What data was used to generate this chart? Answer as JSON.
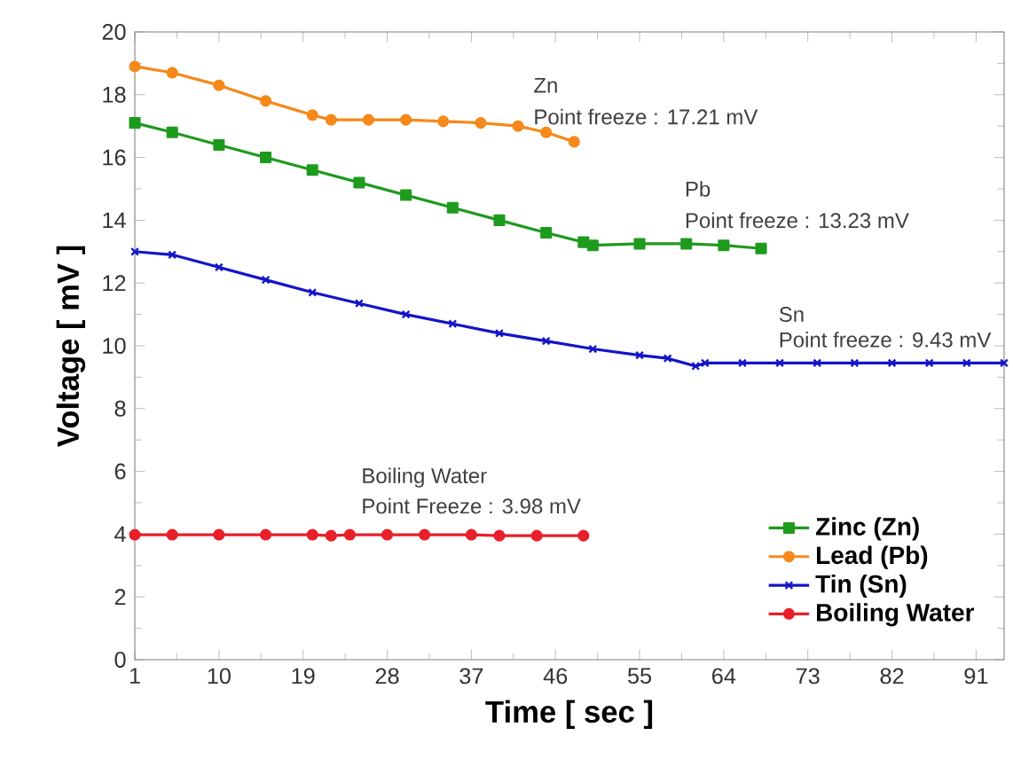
{
  "chart_data": {
    "type": "line",
    "xlabel": "Time [ sec ]",
    "ylabel": "Voltage [ mV ]",
    "xlim": [
      1,
      94
    ],
    "xticks": [
      1,
      10,
      19,
      28,
      37,
      46,
      55,
      64,
      73,
      82,
      91
    ],
    "ylim": [
      0,
      20
    ],
    "yticks": [
      0,
      2,
      4,
      6,
      8,
      10,
      12,
      14,
      16,
      18,
      20
    ],
    "grid": false,
    "legend": "bottom right",
    "series": [
      {
        "name": "Zinc (Zn)",
        "color": "#1e9a1e",
        "marker": "square",
        "x": [
          1,
          5,
          10,
          15,
          20,
          25,
          30,
          35,
          40,
          45,
          49,
          50,
          55,
          60,
          64,
          68
        ],
        "values": [
          17.1,
          16.8,
          16.4,
          16.0,
          15.6,
          15.2,
          14.8,
          14.4,
          14.0,
          13.6,
          13.3,
          13.2,
          13.25,
          13.25,
          13.2,
          13.1
        ]
      },
      {
        "name": "Lead (Pb)",
        "color": "#f5891a",
        "marker": "circle",
        "x": [
          1,
          5,
          10,
          15,
          20,
          22,
          26,
          30,
          34,
          38,
          42,
          45,
          48
        ],
        "values": [
          18.9,
          18.7,
          18.3,
          17.8,
          17.35,
          17.2,
          17.2,
          17.2,
          17.15,
          17.1,
          17.0,
          16.8,
          16.5
        ]
      },
      {
        "name": "Tin (Sn)",
        "color": "#1414c8",
        "marker": "cross",
        "x": [
          1,
          5,
          10,
          15,
          20,
          25,
          30,
          35,
          40,
          45,
          50,
          55,
          58,
          61,
          62,
          66,
          70,
          74,
          78,
          82,
          86,
          90,
          94
        ],
        "values": [
          13.0,
          12.9,
          12.5,
          12.1,
          11.7,
          11.35,
          11.0,
          10.7,
          10.4,
          10.15,
          9.9,
          9.7,
          9.6,
          9.35,
          9.45,
          9.45,
          9.45,
          9.45,
          9.45,
          9.45,
          9.45,
          9.45,
          9.45
        ]
      },
      {
        "name": "Boiling Water",
        "color": "#e8202a",
        "marker": "circle",
        "x": [
          1,
          5,
          10,
          15,
          20,
          22,
          24,
          28,
          32,
          37,
          40,
          44,
          49
        ],
        "values": [
          3.98,
          3.98,
          3.98,
          3.98,
          3.98,
          3.95,
          3.98,
          3.98,
          3.98,
          3.98,
          3.95,
          3.95,
          3.95
        ]
      }
    ],
    "annotations": [
      "Zn",
      "Point freeze : 17.21 mV",
      "Pb",
      "Point freeze : 13.23 mV",
      "Sn",
      "Point freeze : 9.43 mV",
      "Boiling Water",
      "Point Freeze : 3.98 mV"
    ]
  }
}
